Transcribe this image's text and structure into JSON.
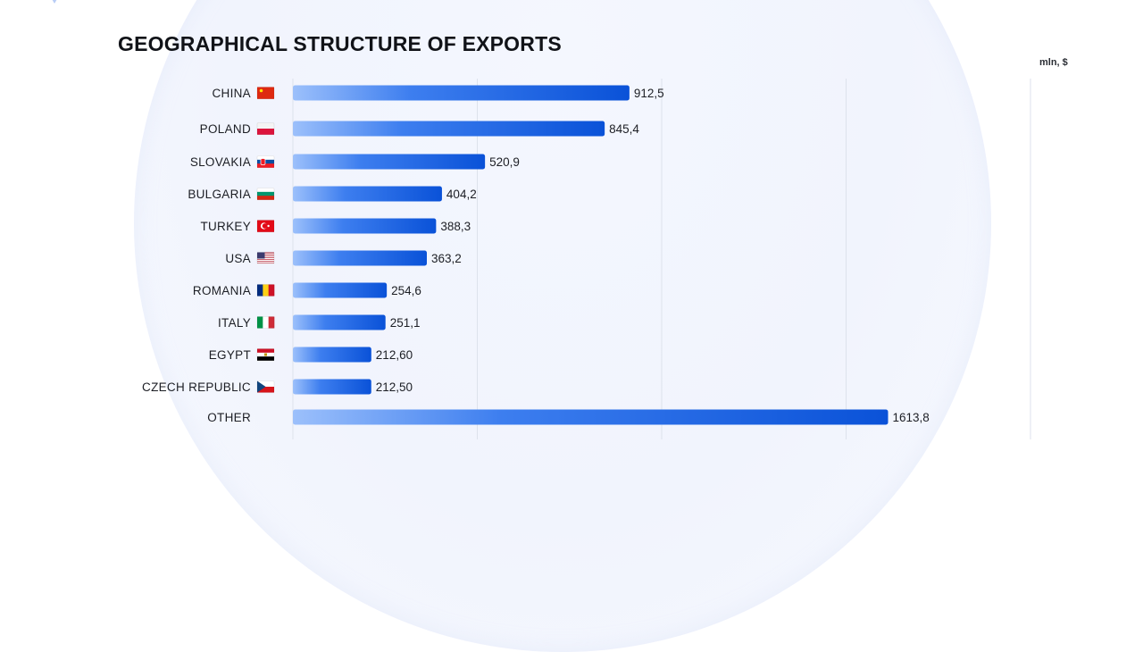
{
  "chart_data": {
    "type": "bar",
    "orientation": "horizontal",
    "title": "GEOGRAPHICAL STRUCTURE OF EXPORTS",
    "unit": "mln, $",
    "categories": [
      "CHINA",
      "POLAND",
      "SLOVAKIA",
      "BULGARIA",
      "TURKEY",
      "USA",
      "ROMANIA",
      "ITALY",
      "EGYPT",
      "CZECH REPUBLIC",
      "OTHER"
    ],
    "values": [
      912.5,
      845.4,
      520.9,
      404.2,
      388.3,
      363.2,
      254.6,
      251.1,
      212.6,
      212.5,
      1613.8
    ],
    "value_labels": [
      "912,5",
      "845,4",
      "520,9",
      "404,2",
      "388,3",
      "363,2",
      "254,6",
      "251,1",
      "212,60",
      "212,50",
      "1613,8"
    ],
    "flags": [
      "china-flag-icon",
      "poland-flag-icon",
      "slovakia-flag-icon",
      "bulgaria-flag-icon",
      "turkey-flag-icon",
      "usa-flag-icon",
      "romania-flag-icon",
      "italy-flag-icon",
      "egypt-flag-icon",
      "czech-republic-flag-icon",
      null
    ],
    "xlim": [
      0,
      2000
    ],
    "grid": true,
    "bar_colors": [
      "#9cc0fb",
      "#0a52d8"
    ]
  }
}
